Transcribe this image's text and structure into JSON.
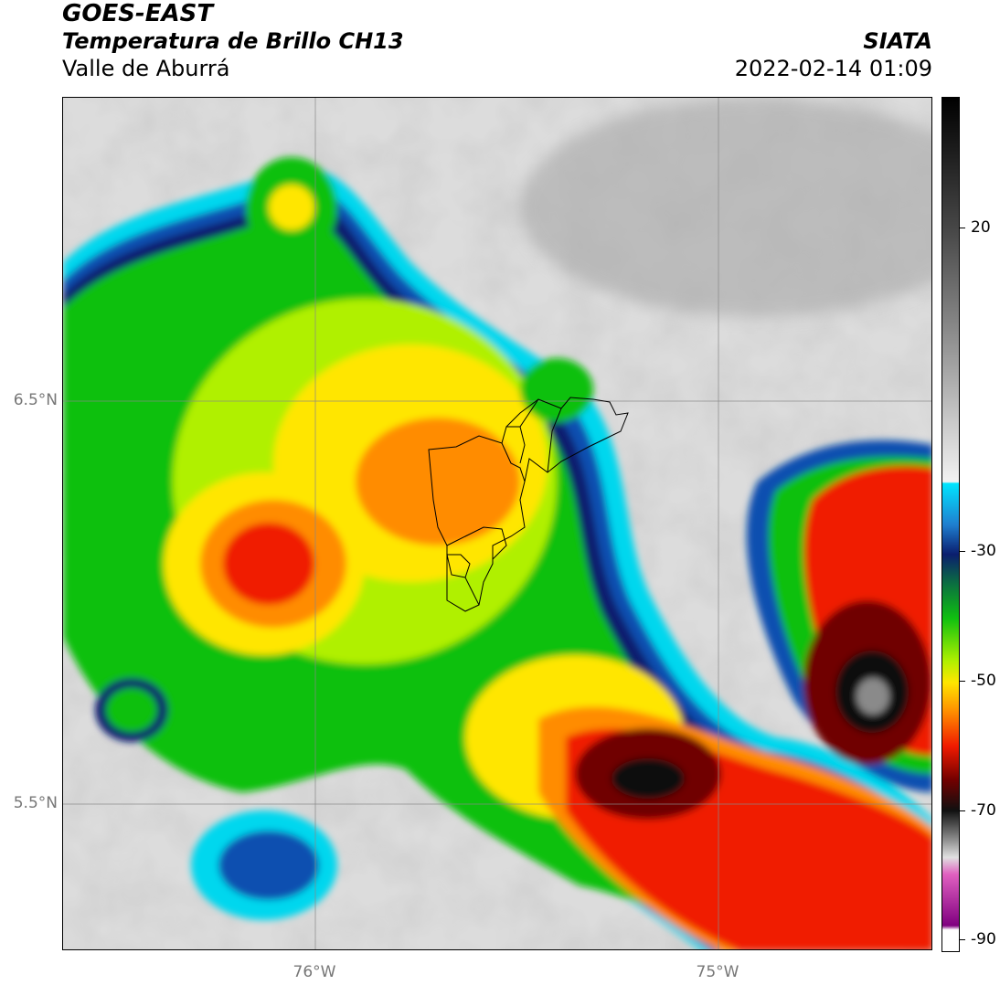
{
  "header": {
    "satellite": "GOES-EAST",
    "product": "Temperatura de Brillo CH13",
    "region": "Valle de Aburrá",
    "agency": "SIATA",
    "datetime": "2022-02-14 01:09"
  },
  "axes": {
    "lat_labels": [
      "6.5°N",
      "5.5°N"
    ],
    "lon_labels": [
      "76°W",
      "75°W"
    ]
  },
  "colorbar": {
    "labels": [
      "20",
      "-30",
      "-50",
      "-70",
      "-90"
    ],
    "unit_values": [
      20,
      -30,
      -50,
      -70,
      -90
    ],
    "colors": {
      "warm_gray": "#d0d0d0",
      "cyan": "#00d7ee",
      "blue": "#1050b0",
      "navy": "#0b1e6e",
      "green": "#10c010",
      "yellow_green": "#b0f000",
      "yellow": "#ffe600",
      "orange": "#ff8c00",
      "red": "#f01a00",
      "dark_red": "#700000",
      "black": "#101010",
      "magenta": "#c020c0"
    }
  }
}
